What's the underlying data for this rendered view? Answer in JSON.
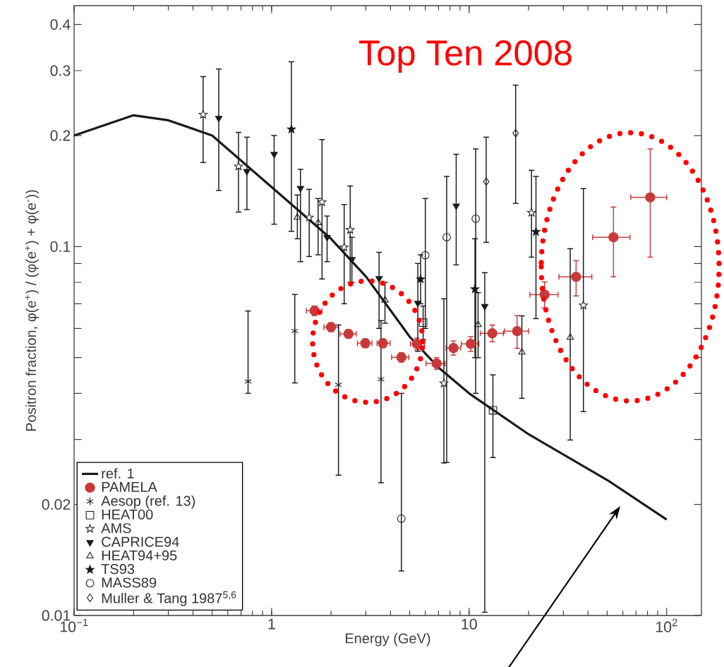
{
  "chart_data": {
    "type": "scatter",
    "xlabel": "Energy (GeV)",
    "ylabel": "Positron fraction, φ(e$^{+}$) / (φ(e$^{+}$) + φ(e$^{-}$))",
    "log": "xy",
    "xlim": [
      0.1,
      150
    ],
    "ylim": [
      0.01,
      0.45
    ],
    "xticks": [
      {
        "value": 0.1,
        "label": "10$^{−1}$"
      },
      1,
      10,
      {
        "value": 100,
        "label": "10$^{2}$"
      }
    ],
    "yticks": [
      0.01,
      0.02,
      {
        "value": 0.03,
        "label": null
      },
      {
        "value": 0.04,
        "label": null
      },
      {
        "value": 0.05,
        "label": null
      },
      {
        "value": 0.06,
        "label": null
      },
      {
        "value": 0.07,
        "label": null
      },
      {
        "value": 0.08,
        "label": null
      },
      {
        "value": 0.09,
        "label": null
      },
      0.1,
      0.2,
      0.3,
      0.4
    ],
    "legend": "bottom left",
    "annotations": [
      "Top Ten 2008"
    ],
    "series": [
      {
        "name": "ref. 1",
        "type": "line",
        "color": "#1a1a1a",
        "x": [
          0.1,
          0.2,
          0.3,
          0.5,
          1,
          2,
          3,
          5,
          7,
          10,
          20,
          50,
          100
        ],
        "values": [
          0.2,
          0.227,
          0.22,
          0.2,
          0.145,
          0.105,
          0.083,
          0.057,
          0.047,
          0.04,
          0.031,
          0.0233,
          0.0182
        ]
      },
      {
        "name": "PAMELA",
        "marker": "circle",
        "color": "#c83a3a",
        "x": [
          1.65,
          2.0,
          2.45,
          2.98,
          3.66,
          4.54,
          5.44,
          6.85,
          8.33,
          10.2,
          13.1,
          17.5,
          24.1,
          34.8,
          53.8,
          82.6
        ],
        "values": [
          0.067,
          0.0605,
          0.058,
          0.0547,
          0.0547,
          0.0501,
          0.0545,
          0.0482,
          0.0531,
          0.0545,
          0.0582,
          0.059,
          0.0741,
          0.0828,
          0.106,
          0.136
        ],
        "errors": [
          [
            0.065,
            0.069
          ],
          [
            0.0588,
            0.0622
          ],
          [
            0.0565,
            0.0595
          ],
          [
            0.0532,
            0.0562
          ],
          [
            0.0532,
            0.0562
          ],
          [
            0.0486,
            0.0516
          ],
          [
            0.0525,
            0.0565
          ],
          [
            0.0465,
            0.05
          ],
          [
            0.0508,
            0.0555
          ],
          [
            0.052,
            0.057
          ],
          [
            0.0552,
            0.0613
          ],
          [
            0.053,
            0.065
          ],
          [
            0.0682,
            0.0802
          ],
          [
            0.0735,
            0.0916
          ],
          [
            0.0828,
            0.128
          ],
          [
            0.0936,
            0.184
          ]
        ],
        "xerrors": [
          [
            1.5,
            1.8
          ],
          [
            1.84,
            2.18
          ],
          [
            2.22,
            2.68
          ],
          [
            2.72,
            3.22
          ],
          [
            3.42,
            3.98
          ],
          [
            4.05,
            4.95
          ],
          [
            5.05,
            5.95
          ],
          [
            6.05,
            7.55
          ],
          [
            7.65,
            9.05
          ],
          [
            9.15,
            11.2
          ],
          [
            11.4,
            14.9
          ],
          [
            15.1,
            20.0
          ],
          [
            20.3,
            28.2
          ],
          [
            28.5,
            41.8
          ],
          [
            42.2,
            65.2
          ],
          [
            65.8,
            100
          ]
        ]
      },
      {
        "name": "Aesop (ref. 13)",
        "marker": "cross",
        "color": "#1a1a1a",
        "x": [
          0.76,
          1.31,
          2.18,
          3.58
        ],
        "values": [
          0.0431,
          0.0591,
          0.0422,
          0.0437
        ],
        "errors": [
          [
            0.04,
            0.0669
          ],
          [
            0.0427,
            0.0742
          ],
          [
            0.024,
            0.0613
          ],
          [
            0.0229,
            0.063
          ]
        ]
      },
      {
        "name": "HEAT00",
        "marker": "square",
        "color": "#1a1a1a",
        "x": [
          5.85,
          13.2
        ],
        "values": [
          0.0622,
          0.036
        ],
        "errors": [
          [
            0.056,
            0.069
          ],
          [
            0.0268,
            0.0449
          ]
        ]
      },
      {
        "name": "AMS",
        "marker": "star",
        "color": "#1a1a1a",
        "x": [
          0.45,
          0.68,
          1.55,
          1.8,
          2.33,
          2.5,
          7.45,
          20.7,
          37.9
        ],
        "values": [
          0.228,
          0.165,
          0.12,
          0.132,
          0.0996,
          0.111,
          0.0426,
          0.1236,
          0.0693
        ],
        "errors": [
          [
            0.169,
            0.289
          ],
          [
            0.124,
            0.204
          ],
          [
            0.094,
            0.143
          ],
          [
            0.0817,
            0.195
          ],
          [
            0.07,
            0.13
          ],
          [
            0.08,
            0.146
          ],
          [
            0.0259,
            0.0722
          ],
          [
            0.0936,
            0.161
          ],
          [
            0.0357,
            0.1436
          ]
        ]
      },
      {
        "name": "CAPRICE94",
        "marker": "triangle",
        "color": "#1a1a1a",
        "x": [
          0.54,
          0.75,
          1.03,
          1.4,
          1.91,
          2.55,
          3.5,
          5.5,
          8.6,
          12.0
        ],
        "values": [
          0.223,
          0.16,
          0.178,
          0.144,
          0.106,
          0.0923,
          0.082,
          0.0703,
          0.129,
          0.0689
        ],
        "errors": [
          [
            0.142,
            0.303
          ],
          [
            0.126,
            0.198
          ],
          [
            0.115,
            0.2
          ],
          [
            0.091,
            0.162
          ],
          [
            0.091,
            0.121
          ],
          [
            0.08,
            0.106
          ],
          [
            0.06,
            0.0965
          ],
          [
            0.052,
            0.09
          ],
          [
            0.0892,
            0.178
          ],
          [
            0.0102,
            0.085
          ]
        ]
      },
      {
        "name": "HEAT94+95",
        "marker": "triangle",
        "color": "#1a1a1a",
        "x": [
          1.35,
          1.72,
          3.75,
          11.1,
          18.5,
          32.5
        ],
        "values": [
          0.12,
          0.116,
          0.0716,
          0.0614,
          0.0517,
          0.0567
        ],
        "errors": [
          [
            0.105,
            0.138
          ],
          [
            0.095,
            0.135
          ],
          [
            0.062,
            0.08
          ],
          [
            0.05,
            0.075
          ],
          [
            0.0388,
            0.0649
          ],
          [
            0.0299,
            0.0987
          ]
        ]
      },
      {
        "name": "TS93",
        "marker": "star",
        "color": "#1a1a1a",
        "x": [
          1.26,
          5.68,
          10.7,
          21.8
        ],
        "values": [
          0.208,
          0.0816,
          0.0767,
          0.1097
        ],
        "errors": [
          [
            0.11,
            0.317
          ],
          [
            0.07,
            0.095
          ],
          [
            0.05,
            0.105
          ],
          [
            0.0638,
            0.155
          ]
        ]
      },
      {
        "name": "MASS89",
        "marker": "circle",
        "color": "#1a1a1a",
        "x": [
          4.54,
          6.0,
          7.7,
          10.8
        ],
        "values": [
          0.0183,
          0.0948,
          0.106,
          0.119
        ],
        "errors": [
          [
            0.0132,
            0.04
          ],
          [
            0.06,
            0.135
          ],
          [
            0.026,
            0.155
          ],
          [
            0.04,
            0.184
          ]
        ]
      },
      {
        "name": "Muller & Tang 1987$^{5,6}$",
        "marker": "diamond",
        "color": "#1a1a1a",
        "x": [
          12.2,
          17.2
        ],
        "values": [
          0.15,
          0.203
        ],
        "errors": [
          [
            0.1027,
            0.198
          ],
          [
            0.131,
            0.274
          ]
        ]
      }
    ]
  }
}
